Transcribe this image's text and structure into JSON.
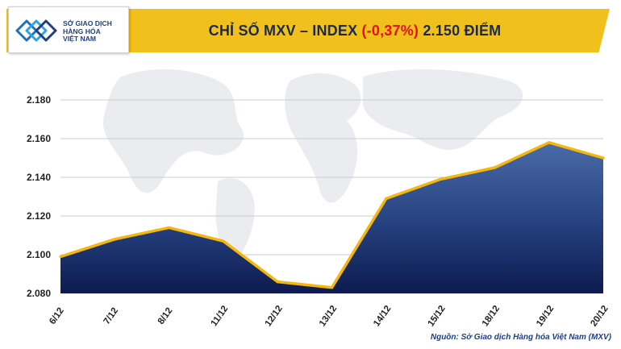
{
  "header": {
    "title_main": "CHỈ SỐ MXV – INDEX",
    "title_change": "(-0,37%)",
    "title_value": "2.150 ĐIỂM"
  },
  "logo": {
    "line1": "SỞ GIAO DỊCH",
    "line2": "HÀNG HÓA",
    "line3": "VIỆT NAM"
  },
  "source": "Nguồn: Sở Giao dịch Hàng hóa Việt Nam (MXV)",
  "colors": {
    "banner": "#f2c01c",
    "area_top": "#3b5a9a",
    "area_bottom": "#0e1e55",
    "line": "#f5b70a",
    "negative": "#e0141e"
  },
  "chart_data": {
    "type": "area",
    "categories": [
      "6/12",
      "7/12",
      "8/12",
      "11/12",
      "12/12",
      "13/12",
      "14/12",
      "15/12",
      "18/12",
      "19/12",
      "20/12"
    ],
    "series": [
      {
        "values": [
          2099,
          2108,
          2114,
          2107,
          2086,
          2083,
          2129,
          2139,
          2145,
          2158,
          2150
        ]
      }
    ],
    "yticks": [
      "2.080",
      "2.100",
      "2.120",
      "2.140",
      "2.160",
      "2.180"
    ],
    "ylim": [
      2080,
      2190
    ],
    "grid": true
  }
}
